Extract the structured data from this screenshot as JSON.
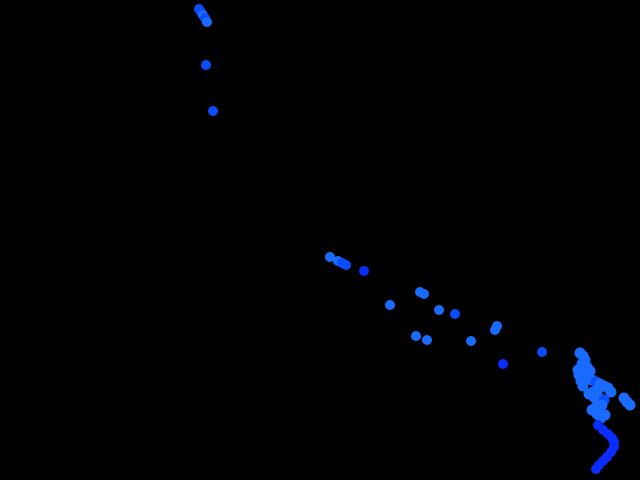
{
  "scene": {
    "background": "#000000",
    "palette": {
      "light_blue": "#1a6bff",
      "mid_blue": "#0a4dff",
      "deep_blue": "#0a2cff",
      "bright_blue": "#0055ff"
    }
  }
}
